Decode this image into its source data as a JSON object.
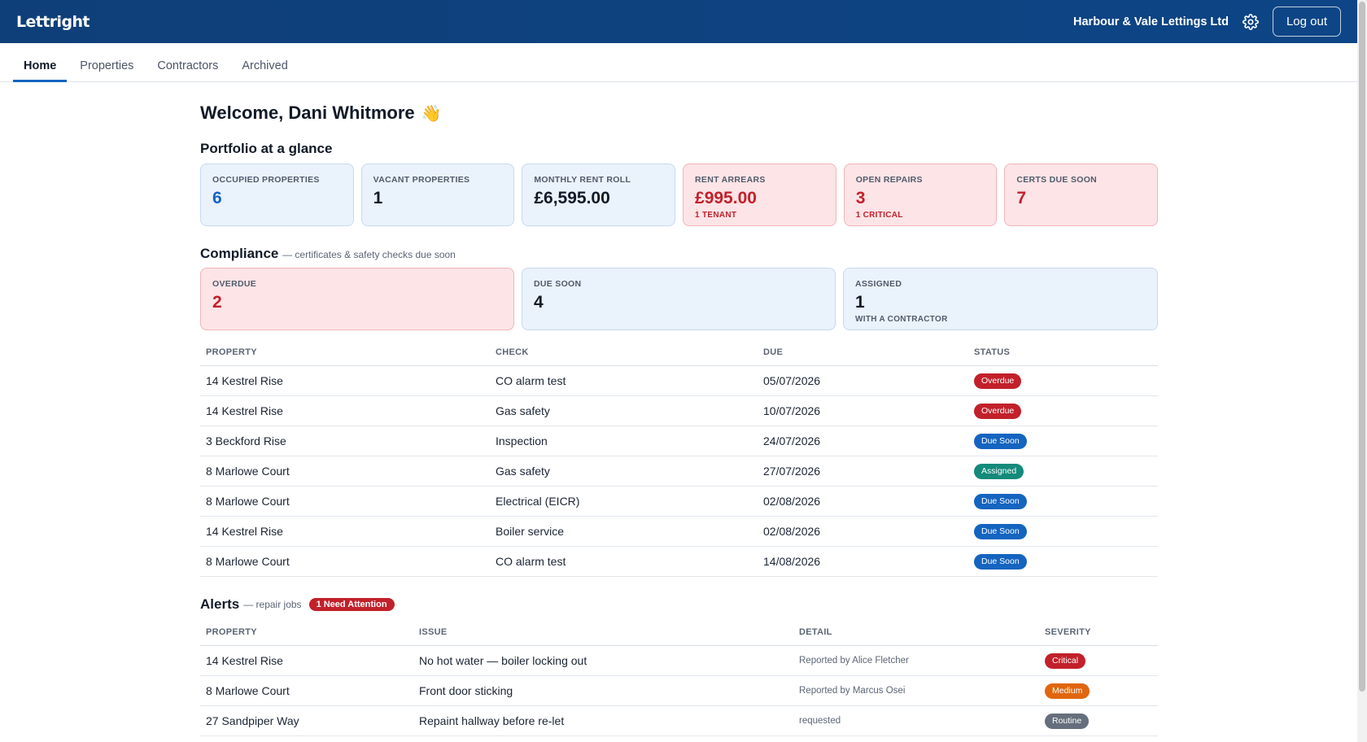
{
  "header": {
    "brand": "Lettright",
    "org": "Harbour & Vale Lettings Ltd",
    "gear_icon": "gear-icon",
    "logout_label": "Log out"
  },
  "nav": {
    "tabs": [
      {
        "label": "Home",
        "active": true
      },
      {
        "label": "Properties"
      },
      {
        "label": "Contractors"
      },
      {
        "label": "Archived"
      }
    ]
  },
  "welcome": {
    "text": "Welcome, Dani Whitmore",
    "emoji": "👋"
  },
  "portfolio": {
    "title": "Portfolio at a glance",
    "cards": [
      {
        "label": "OCCUPIED PROPERTIES",
        "value": "6",
        "note": ""
      },
      {
        "label": "VACANT PROPERTIES",
        "value": "1",
        "note": ""
      },
      {
        "label": "MONTHLY RENT ROLL",
        "value": "£6,595.00",
        "note": ""
      },
      {
        "label": "RENT ARREARS",
        "value": "£995.00",
        "note": "1 TENANT"
      },
      {
        "label": "OPEN REPAIRS",
        "value": "3",
        "note": "1 CRITICAL"
      },
      {
        "label": "CERTS DUE SOON",
        "value": "7",
        "note": ""
      }
    ]
  },
  "compliance": {
    "title": "Compliance",
    "subtitle": "— certificates & safety checks due soon",
    "cards": [
      {
        "label": "OVERDUE",
        "value": "2",
        "note": ""
      },
      {
        "label": "DUE SOON",
        "value": "4",
        "note": ""
      },
      {
        "label": "ASSIGNED",
        "value": "1",
        "note": "WITH A CONTRACTOR"
      }
    ],
    "columns": [
      "PROPERTY",
      "CHECK",
      "DUE",
      "STATUS"
    ],
    "rows": [
      {
        "property": "14 Kestrel Rise",
        "check": "CO alarm test",
        "due": "05/07/2026",
        "status": "Overdue"
      },
      {
        "property": "14 Kestrel Rise",
        "check": "Gas safety",
        "due": "10/07/2026",
        "status": "Overdue"
      },
      {
        "property": "3 Beckford Rise",
        "check": "Inspection",
        "due": "24/07/2026",
        "status": "Due Soon"
      },
      {
        "property": "8 Marlowe Court",
        "check": "Gas safety",
        "due": "27/07/2026",
        "status": "Assigned"
      },
      {
        "property": "8 Marlowe Court",
        "check": "Electrical (EICR)",
        "due": "02/08/2026",
        "status": "Due Soon"
      },
      {
        "property": "14 Kestrel Rise",
        "check": "Boiler service",
        "due": "02/08/2026",
        "status": "Due Soon"
      },
      {
        "property": "8 Marlowe Court",
        "check": "CO alarm test",
        "due": "14/08/2026",
        "status": "Due Soon"
      }
    ]
  },
  "alerts": {
    "title": "Alerts",
    "subtitle": "— repair jobs",
    "badge": "1 Need Attention",
    "columns": [
      "PROPERTY",
      "ISSUE",
      "DETAIL",
      "SEVERITY"
    ],
    "rows": [
      {
        "property": "14 Kestrel Rise",
        "issue": "No hot water — boiler locking out",
        "detail": "Reported by Alice Fletcher",
        "severity": "Critical"
      },
      {
        "property": "8 Marlowe Court",
        "issue": "Front door sticking",
        "detail": "Reported by Marcus Osei",
        "severity": "Medium"
      },
      {
        "property": "27 Sandpiper Way",
        "issue": "Repaint hallway before re-let",
        "detail": "requested",
        "severity": "Routine"
      }
    ]
  },
  "colors": {
    "header_bg": "#0f3f78",
    "accent_blue": "#1464c0",
    "alert_red": "#c2202a",
    "assigned_teal": "#138a7a",
    "medium_orange": "#e0660f",
    "routine_grey": "#656e7c"
  }
}
